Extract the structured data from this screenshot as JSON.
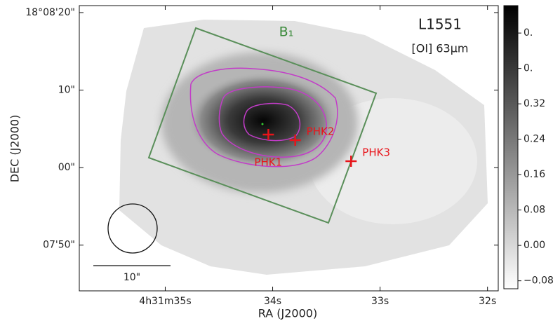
{
  "chart_data": {
    "type": "image",
    "title": "L1551",
    "subtitle": "[OI] 63μm",
    "box_label": "B₁",
    "xlabel": "RA (J2000)",
    "ylabel": "DEC (J2000)",
    "xlim": [
      35.8,
      31.9
    ],
    "xticks": [
      {
        "value": 35,
        "label": "4h31m35s"
      },
      {
        "value": 34,
        "label": "34s"
      },
      {
        "value": 33,
        "label": "33s"
      },
      {
        "value": 32,
        "label": "32s"
      }
    ],
    "ylim": [
      -15.9,
      20.9
    ],
    "yticks": [
      {
        "value": 20,
        "label": "18°08'20\""
      },
      {
        "value": 10,
        "label": "10\""
      },
      {
        "value": 0,
        "label": "00\""
      },
      {
        "value": -10,
        "label": "07'50\""
      }
    ],
    "points": {
      "labels": [
        "PHK1",
        "PHK2",
        "PHK3"
      ],
      "x": [
        34.04,
        33.79,
        33.27
      ],
      "y": [
        4.26,
        3.54,
        0.83
      ],
      "color": "#e8141a"
    },
    "scale_bar_label": "10\"",
    "colorbar": {
      "lim": [
        -0.098,
        0.542
      ],
      "ticks": [
        {
          "value": -0.08,
          "label": "−0.08"
        },
        {
          "value": 0,
          "label": "0.00"
        },
        {
          "value": 0.08,
          "label": "0.08"
        },
        {
          "value": 0.16,
          "label": "0.16"
        },
        {
          "value": 0.24,
          "label": "0.24"
        },
        {
          "value": 0.32,
          "label": "0.32"
        },
        {
          "value": 0.4,
          "label": "0."
        },
        {
          "value": 0.48,
          "label": "0."
        }
      ]
    }
  }
}
